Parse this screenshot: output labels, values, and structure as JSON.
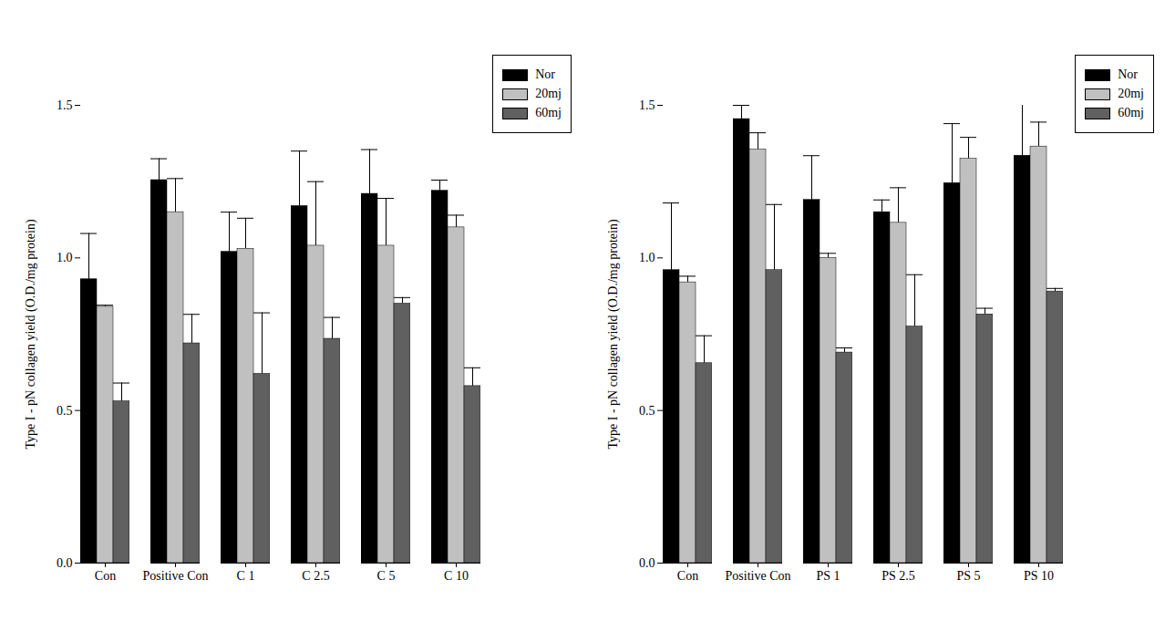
{
  "chart_data": [
    {
      "type": "bar",
      "y_label": "Type I - pN collagen yield (O.D./mg protein)",
      "categories": [
        "Con",
        "Positive Con",
        "C 1",
        "C 2.5",
        "C 5",
        "C 10"
      ],
      "series": [
        {
          "name": "Nor",
          "color": "#000000",
          "values": [
            0.93,
            1.255,
            1.02,
            1.17,
            1.21,
            1.22
          ],
          "errors": [
            0.15,
            0.07,
            0.13,
            0.18,
            0.145,
            0.035
          ]
        },
        {
          "name": "20mj",
          "color": "#c0c0c0",
          "values": [
            0.84,
            1.15,
            1.03,
            1.04,
            1.04,
            1.1
          ],
          "errors": [
            0.005,
            0.11,
            0.1,
            0.21,
            0.155,
            0.04
          ]
        },
        {
          "name": "60mj",
          "color": "#606060",
          "values": [
            0.53,
            0.72,
            0.62,
            0.735,
            0.85,
            0.58
          ],
          "errors": [
            0.06,
            0.095,
            0.2,
            0.07,
            0.02,
            0.06
          ]
        }
      ],
      "ylim": [
        0,
        1.5
      ],
      "yticks": [
        {
          "value": 0,
          "label": "0.0"
        },
        {
          "value": 0.5,
          "label": "0.5"
        },
        {
          "value": 1,
          "label": "1.0"
        },
        {
          "value": 1.5,
          "label": "1.5"
        }
      ],
      "legend": "top-right"
    },
    {
      "type": "bar",
      "y_label": "Type I - pN collagen yield (O.D./mg protein)",
      "categories": [
        "Con",
        "Positive Con",
        "PS 1",
        "PS 2.5",
        "PS 5",
        "PS 10"
      ],
      "series": [
        {
          "name": "Nor",
          "color": "#000000",
          "values": [
            0.96,
            1.455,
            1.19,
            1.15,
            1.245,
            1.335
          ],
          "errors": [
            0.22,
            0.045,
            0.145,
            0.04,
            0.195,
            0.17
          ]
        },
        {
          "name": "20mj",
          "color": "#c0c0c0",
          "values": [
            0.92,
            1.355,
            1.0,
            1.115,
            1.325,
            1.365
          ],
          "errors": [
            0.02,
            0.055,
            0.015,
            0.115,
            0.07,
            0.08
          ]
        },
        {
          "name": "60mj",
          "color": "#606060",
          "values": [
            0.655,
            0.96,
            0.69,
            0.775,
            0.815,
            0.89
          ],
          "errors": [
            0.09,
            0.215,
            0.015,
            0.17,
            0.02,
            0.01
          ]
        }
      ],
      "ylim": [
        0,
        1.5
      ],
      "yticks": [
        {
          "value": 0,
          "label": "0.0"
        },
        {
          "value": 0.5,
          "label": "0.5"
        },
        {
          "value": 1,
          "label": "1.0"
        },
        {
          "value": 1.5,
          "label": "1.5"
        }
      ],
      "legend": "top-right"
    }
  ]
}
